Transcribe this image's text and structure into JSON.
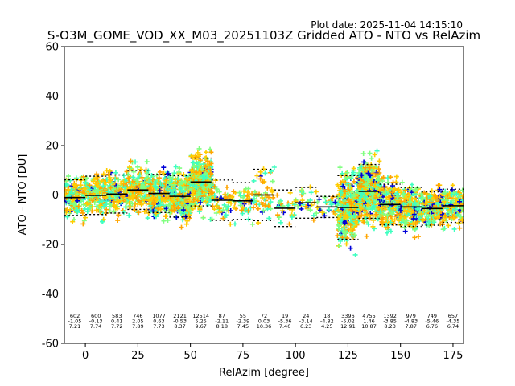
{
  "chart_data": {
    "type": "scatter",
    "title": "S-O3M_GOME_VOD_XX_M03_20251103Z Gridded ATO - NTO vs RelAzim",
    "plot_date": "Plot date: 2025-11-04 14:15:10",
    "xlabel": "RelAzim [degree]",
    "ylabel": "ATO - NTO [DU]",
    "xlim": [
      -10,
      180
    ],
    "ylim": [
      -60,
      60
    ],
    "xticks": [
      0,
      25,
      50,
      75,
      100,
      125,
      150,
      175
    ],
    "yticks": [
      -60,
      -40,
      -20,
      0,
      20,
      40,
      60
    ],
    "grid": false,
    "colors": {
      "dark_blue": "#0000d8",
      "cyan": "#3effc0",
      "light_green": "#80ff80",
      "yellow": "#ffcc00",
      "orange": "#ffa500",
      "mean_line": "#000000",
      "zero_line": "#000000"
    },
    "bins": [
      {
        "center": -5,
        "count": "602",
        "mean": "-1.05",
        "std": "7.21"
      },
      {
        "center": 5,
        "count": "600",
        "mean": "-0.13",
        "std": "7.74"
      },
      {
        "center": 15,
        "count": "583",
        "mean": "0.41",
        "std": "7.72"
      },
      {
        "center": 25,
        "count": "746",
        "mean": "2.05",
        "std": "7.89"
      },
      {
        "center": 35,
        "count": "1077",
        "mean": "0.63",
        "std": "7.73"
      },
      {
        "center": 45,
        "count": "2121",
        "mean": "-0.53",
        "std": "8.37"
      },
      {
        "center": 55,
        "count": "12514",
        "mean": "5.25",
        "std": "9.67"
      },
      {
        "center": 65,
        "count": "87",
        "mean": "-2.11",
        "std": "8.18"
      },
      {
        "center": 75,
        "count": "55",
        "mean": "-2.39",
        "std": "7.45"
      },
      {
        "center": 85,
        "count": "72",
        "mean": "0.03",
        "std": "10.36"
      },
      {
        "center": 95,
        "count": "19",
        "mean": "-5.36",
        "std": "7.40"
      },
      {
        "center": 105,
        "count": "24",
        "mean": "-3.14",
        "std": "6.23"
      },
      {
        "center": 115,
        "count": "18",
        "mean": "-4.82",
        "std": "4.25"
      },
      {
        "center": 125,
        "count": "3396",
        "mean": "-5.02",
        "std": "12.91"
      },
      {
        "center": 135,
        "count": "4755",
        "mean": "1.46",
        "std": "10.87"
      },
      {
        "center": 145,
        "count": "1392",
        "mean": "-3.85",
        "std": "8.23"
      },
      {
        "center": 155,
        "count": "979",
        "mean": "-4.83",
        "std": "7.87"
      },
      {
        "center": 165,
        "count": "749",
        "mean": "-5.46",
        "std": "6.76"
      },
      {
        "center": 175,
        "count": "657",
        "mean": "-4.35",
        "std": "6.74"
      }
    ]
  }
}
